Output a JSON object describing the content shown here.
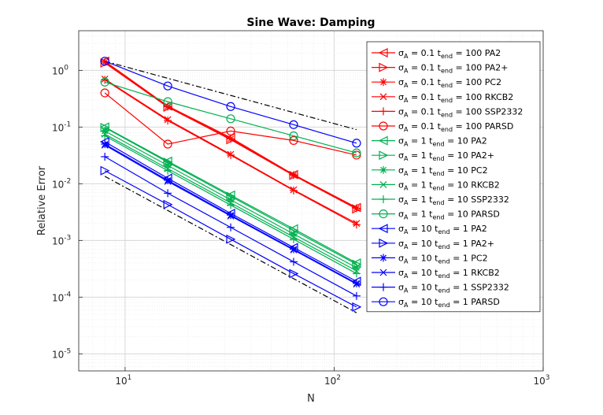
{
  "chart_data": {
    "type": "line",
    "title": "Sine Wave: Damping",
    "xlabel": "N",
    "ylabel": "Relative Error",
    "xscale": "log",
    "yscale": "log",
    "xlim": [
      6,
      1000
    ],
    "ylim": [
      5e-06,
      5
    ],
    "grid": true,
    "x_ticks": [
      {
        "value": 10,
        "base": "10",
        "exp": "1"
      },
      {
        "value": 100,
        "base": "10",
        "exp": "2"
      },
      {
        "value": 1000,
        "base": "10",
        "exp": "3"
      }
    ],
    "y_ticks": [
      {
        "value": 1e-05,
        "base": "10",
        "exp": "-5"
      },
      {
        "value": 0.0001,
        "base": "10",
        "exp": "-4"
      },
      {
        "value": 0.001,
        "base": "10",
        "exp": "-3"
      },
      {
        "value": 0.01,
        "base": "10",
        "exp": "-2"
      },
      {
        "value": 0.1,
        "base": "10",
        "exp": "-1"
      },
      {
        "value": 1,
        "base": "10",
        "exp": "0"
      }
    ],
    "legend_position": "right",
    "x": [
      8,
      16,
      32,
      64,
      128
    ],
    "reference_lines": [
      {
        "style": "dashdot",
        "color": "#000000",
        "x": [
          8,
          128
        ],
        "y": [
          1.45,
          0.09
        ]
      },
      {
        "style": "dashdot",
        "color": "#000000",
        "x": [
          8,
          128
        ],
        "y": [
          0.0135,
          5.3e-05
        ]
      }
    ],
    "series": [
      {
        "sigma": "0.1",
        "tend": "100",
        "method": "PA2",
        "color": "#ff0000",
        "marker": "triangle-left",
        "values": [
          1.45,
          0.235,
          0.065,
          0.0145,
          0.0038
        ]
      },
      {
        "sigma": "0.1",
        "tend": "100",
        "method": "PA2+",
        "color": "#ff0000",
        "marker": "triangle-right",
        "values": [
          1.35,
          0.225,
          0.06,
          0.014,
          0.0036
        ]
      },
      {
        "sigma": "0.1",
        "tend": "100",
        "method": "PC2",
        "color": "#ff0000",
        "marker": "asterisk",
        "values": [
          1.4,
          0.23,
          0.062,
          0.0142,
          0.0037
        ]
      },
      {
        "sigma": "0.1",
        "tend": "100",
        "method": "RKCB2",
        "color": "#ff0000",
        "marker": "x",
        "values": [
          0.7,
          0.135,
          0.033,
          0.0078,
          0.002
        ]
      },
      {
        "sigma": "0.1",
        "tend": "100",
        "method": "SSP2332",
        "color": "#ff0000",
        "marker": "plus",
        "values": [
          0.68,
          0.13,
          0.032,
          0.0076,
          0.0019
        ]
      },
      {
        "sigma": "0.1",
        "tend": "100",
        "method": "PARSD",
        "color": "#ff0000",
        "marker": "circle",
        "values": [
          0.4,
          0.05,
          0.085,
          0.058,
          0.032
        ]
      },
      {
        "sigma": "1",
        "tend": "10",
        "method": "PA2",
        "color": "#00b050",
        "marker": "triangle-left",
        "values": [
          0.1,
          0.025,
          0.0063,
          0.0016,
          0.0004
        ]
      },
      {
        "sigma": "1",
        "tend": "10",
        "method": "PA2+",
        "color": "#00b050",
        "marker": "triangle-right",
        "values": [
          0.098,
          0.024,
          0.006,
          0.0015,
          0.00038
        ]
      },
      {
        "sigma": "1",
        "tend": "10",
        "method": "PC2",
        "color": "#00b050",
        "marker": "asterisk",
        "values": [
          0.085,
          0.021,
          0.0052,
          0.0013,
          0.00033
        ]
      },
      {
        "sigma": "1",
        "tend": "10",
        "method": "RKCB2",
        "color": "#00b050",
        "marker": "x",
        "values": [
          0.075,
          0.0185,
          0.0046,
          0.00115,
          0.00029
        ]
      },
      {
        "sigma": "1",
        "tend": "10",
        "method": "SSP2332",
        "color": "#00b050",
        "marker": "plus",
        "values": [
          0.07,
          0.017,
          0.0042,
          0.00105,
          0.00026
        ]
      },
      {
        "sigma": "1",
        "tend": "10",
        "method": "PARSD",
        "color": "#00b050",
        "marker": "circle",
        "values": [
          0.62,
          0.28,
          0.14,
          0.07,
          0.035
        ]
      },
      {
        "sigma": "10",
        "tend": "1",
        "method": "PA2",
        "color": "#0000ff",
        "marker": "triangle-left",
        "values": [
          0.055,
          0.0125,
          0.003,
          0.00075,
          0.00019
        ]
      },
      {
        "sigma": "10",
        "tend": "1",
        "method": "PA2+",
        "color": "#0000ff",
        "marker": "triangle-right",
        "values": [
          0.017,
          0.0043,
          0.00105,
          0.00026,
          6.7e-05
        ]
      },
      {
        "sigma": "10",
        "tend": "1",
        "method": "PC2",
        "color": "#0000ff",
        "marker": "asterisk",
        "values": [
          0.05,
          0.0115,
          0.0028,
          0.0007,
          0.000175
        ]
      },
      {
        "sigma": "10",
        "tend": "1",
        "method": "RKCB2",
        "color": "#0000ff",
        "marker": "x",
        "values": [
          0.048,
          0.011,
          0.0027,
          0.00068,
          0.00017
        ]
      },
      {
        "sigma": "10",
        "tend": "1",
        "method": "SSP2332",
        "color": "#0000ff",
        "marker": "plus",
        "values": [
          0.03,
          0.0068,
          0.0017,
          0.00042,
          0.000105
        ]
      },
      {
        "sigma": "10",
        "tend": "1",
        "method": "PARSD",
        "color": "#0000ff",
        "marker": "circle",
        "values": [
          1.45,
          0.53,
          0.23,
          0.11,
          0.052
        ]
      }
    ]
  }
}
